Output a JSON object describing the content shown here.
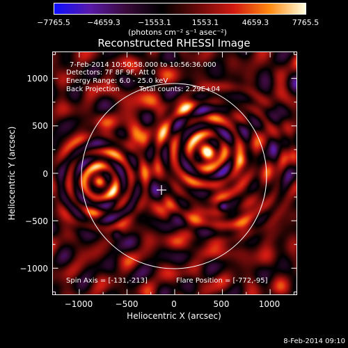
{
  "colorbar": {
    "ticks": [
      "−7765.5",
      "−4659.3",
      "−1553.1",
      "1553.1",
      "4659.3",
      "7765.5"
    ],
    "units": "(photons cm⁻² s⁻¹ asec⁻²)",
    "colors": [
      "#1010ff",
      "#5a1aa8",
      "#3a0a3a",
      "#000000",
      "#6a0a0a",
      "#d21a12",
      "#ff8a10",
      "#ffffe0"
    ]
  },
  "title": "Reconstructed RHESSI Image",
  "overlay": {
    "time_range": "7-Feb-2014 10:50:58.000 to 10:56:36.000",
    "detectors": "Detectors: 7F 8F 9F, Att 0",
    "energy": "Energy Range: 6.0 - 25.0 keV",
    "method": "Back Projection",
    "total_counts": "Total counts: 2.29E+04",
    "spin_axis": "Spin Axis = [-131,-213]",
    "flare_position": "Flare Position = [-772,-95]"
  },
  "axes": {
    "xlabel": "Heliocentric X (arcsec)",
    "ylabel": "Heliocentric Y (arcsec)",
    "x_ticks": [
      "−1000",
      "−500",
      "0",
      "500",
      "1000"
    ],
    "y_ticks": [
      "1000",
      "500",
      "0",
      "−500",
      "−1000"
    ],
    "xlim": [
      -1280,
      1280
    ],
    "ylim": [
      -1280,
      1280
    ]
  },
  "timestamp": "8-Feb-2014 09:10"
}
